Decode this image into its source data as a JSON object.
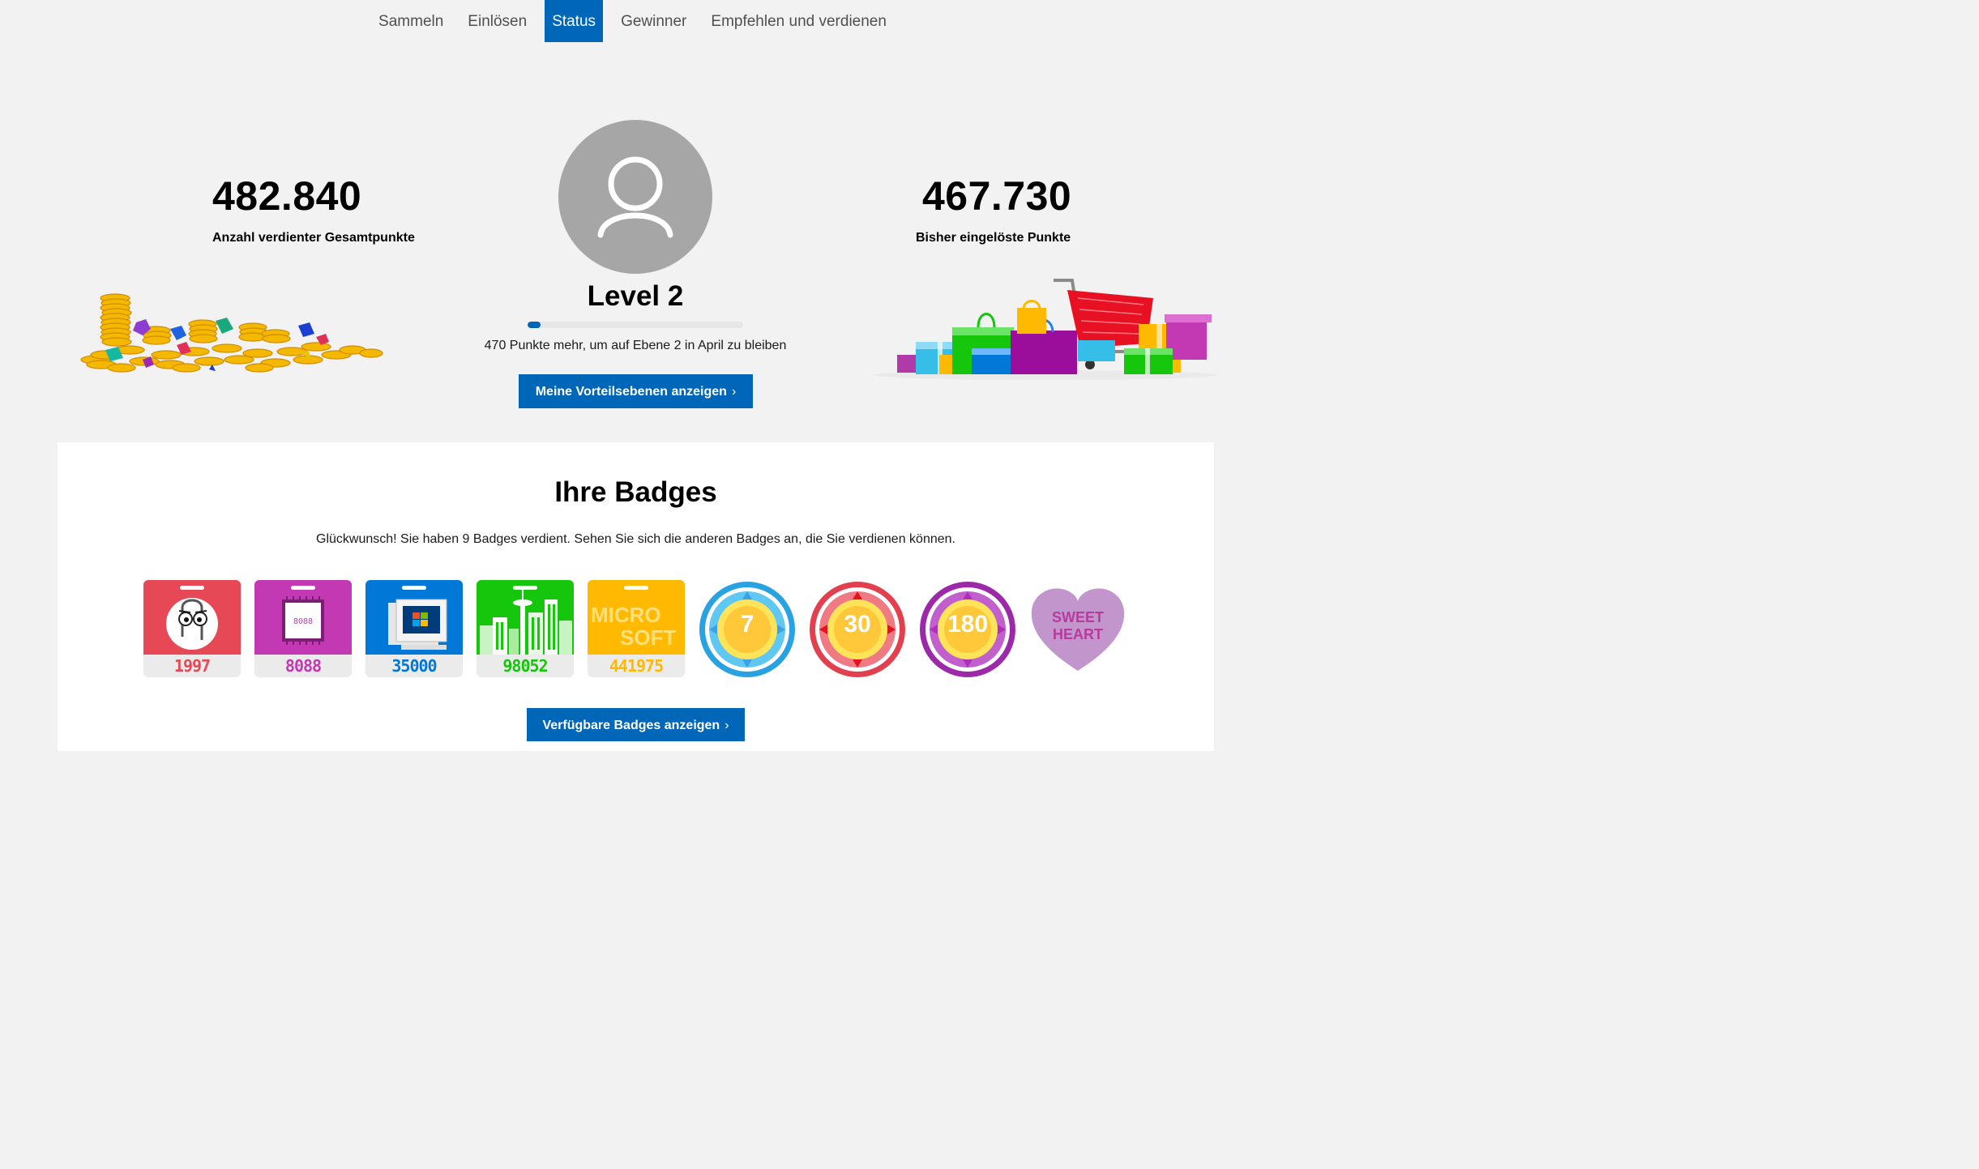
{
  "nav": {
    "items": [
      "Sammeln",
      "Einlösen",
      "Status",
      "Gewinner",
      "Empfehlen und verdienen"
    ],
    "active": "Status"
  },
  "hero": {
    "earned_points": "482.840",
    "earned_label": "Anzahl verdienter Gesamtpunkte",
    "redeemed_points": "467.730",
    "redeemed_label": "Bisher eingelöste Punkte",
    "level": "Level 2",
    "progress_fraction": 0.06,
    "level_note": "470 Punkte mehr, um auf Ebene 2 in April zu bleiben",
    "tiers_button": "Meine Vorteilsebenen anzeigen",
    "avatar_icon": "user-icon"
  },
  "badges": {
    "title": "Ihre Badges",
    "subtitle": "Glückwunsch! Sie haben 9 Badges verdient. Sehen Sie sich die anderen Badges an, die Sie verdienen können.",
    "cards": [
      {
        "number": "1997",
        "color": "#e74856",
        "num_color": "#e74856",
        "icon": "clippy-icon"
      },
      {
        "number": "8088",
        "color": "#c239b3",
        "num_color": "#c239b3",
        "icon": "chip-icon",
        "chip_text": "8088"
      },
      {
        "number": "35000",
        "color": "#0078d7",
        "num_color": "#0078d7",
        "icon": "retro-pc-icon"
      },
      {
        "number": "98052",
        "color": "#16c60c",
        "num_color": "#16c60c",
        "icon": "city-skyline-icon"
      },
      {
        "number": "441975",
        "color": "#ffb900",
        "num_color": "#ffb900",
        "icon": "microsoft-text-icon",
        "word1": "MICRO",
        "word2": "SOFT"
      }
    ],
    "streaks": [
      {
        "number": "7",
        "ring": "#3ab6f0",
        "gem": "#33a8e8"
      },
      {
        "number": "30",
        "ring": "#e74856",
        "gem": "#e62e3e"
      },
      {
        "number": "180",
        "ring": "#a52fb3",
        "gem": "#b02dc0"
      }
    ],
    "heart": {
      "line1": "SWEET",
      "line2": "HEART",
      "color": "#c295cc"
    },
    "button": "Verfügbare Badges anzeigen"
  }
}
